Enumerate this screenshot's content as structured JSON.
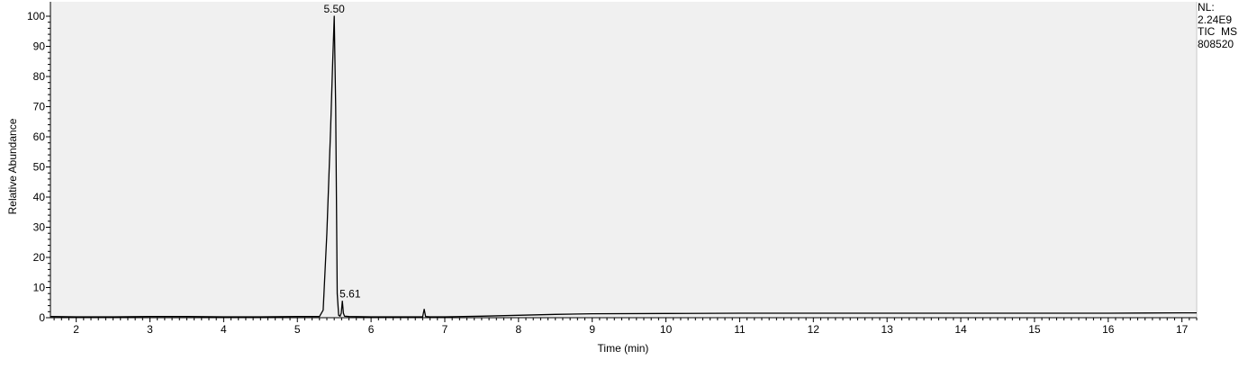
{
  "chart_data": {
    "type": "line",
    "title": "",
    "xlabel": "Time (min)",
    "ylabel": "Relative Abundance",
    "xlim": [
      1.65,
      17.2
    ],
    "ylim": [
      0,
      100
    ],
    "x_ticks": [
      2,
      3,
      4,
      5,
      6,
      7,
      8,
      9,
      10,
      11,
      12,
      13,
      14,
      15,
      16,
      17
    ],
    "y_ticks": [
      0,
      10,
      20,
      30,
      40,
      50,
      60,
      70,
      80,
      90,
      100
    ],
    "grid": false,
    "series": [
      {
        "x": [
          1.65,
          2.0,
          2.5,
          3.0,
          3.5,
          4.0,
          4.5,
          5.0,
          5.3,
          5.35,
          5.4,
          5.45,
          5.48,
          5.5,
          5.52,
          5.54,
          5.56,
          5.58,
          5.595,
          5.61,
          5.625,
          5.64,
          5.7,
          6.0,
          6.5,
          6.7,
          6.72,
          6.74,
          6.8,
          7.0,
          7.5,
          8.0,
          8.5,
          9.0,
          10.0,
          11.0,
          12.0,
          13.0,
          14.0,
          15.0,
          16.0,
          17.0,
          17.2
        ],
        "y": [
          0.4,
          0.3,
          0.3,
          0.4,
          0.4,
          0.3,
          0.3,
          0.4,
          0.4,
          2.5,
          28.0,
          62.0,
          85.0,
          100.0,
          70.0,
          8.0,
          0.8,
          0.5,
          1.5,
          5.5,
          1.5,
          0.5,
          0.4,
          0.3,
          0.3,
          0.3,
          2.8,
          0.4,
          0.3,
          0.3,
          0.5,
          0.8,
          1.1,
          1.3,
          1.4,
          1.5,
          1.5,
          1.5,
          1.5,
          1.5,
          1.5,
          1.6,
          1.6
        ]
      }
    ],
    "peak_labels": [
      {
        "x": 5.5,
        "y": 100.0,
        "label": "5.50"
      },
      {
        "x": 5.61,
        "y": 5.5,
        "label": "5.61"
      }
    ]
  },
  "info": {
    "lines": [
      "NL:",
      "2.24E9",
      "TIC  MS",
      "808520"
    ]
  }
}
